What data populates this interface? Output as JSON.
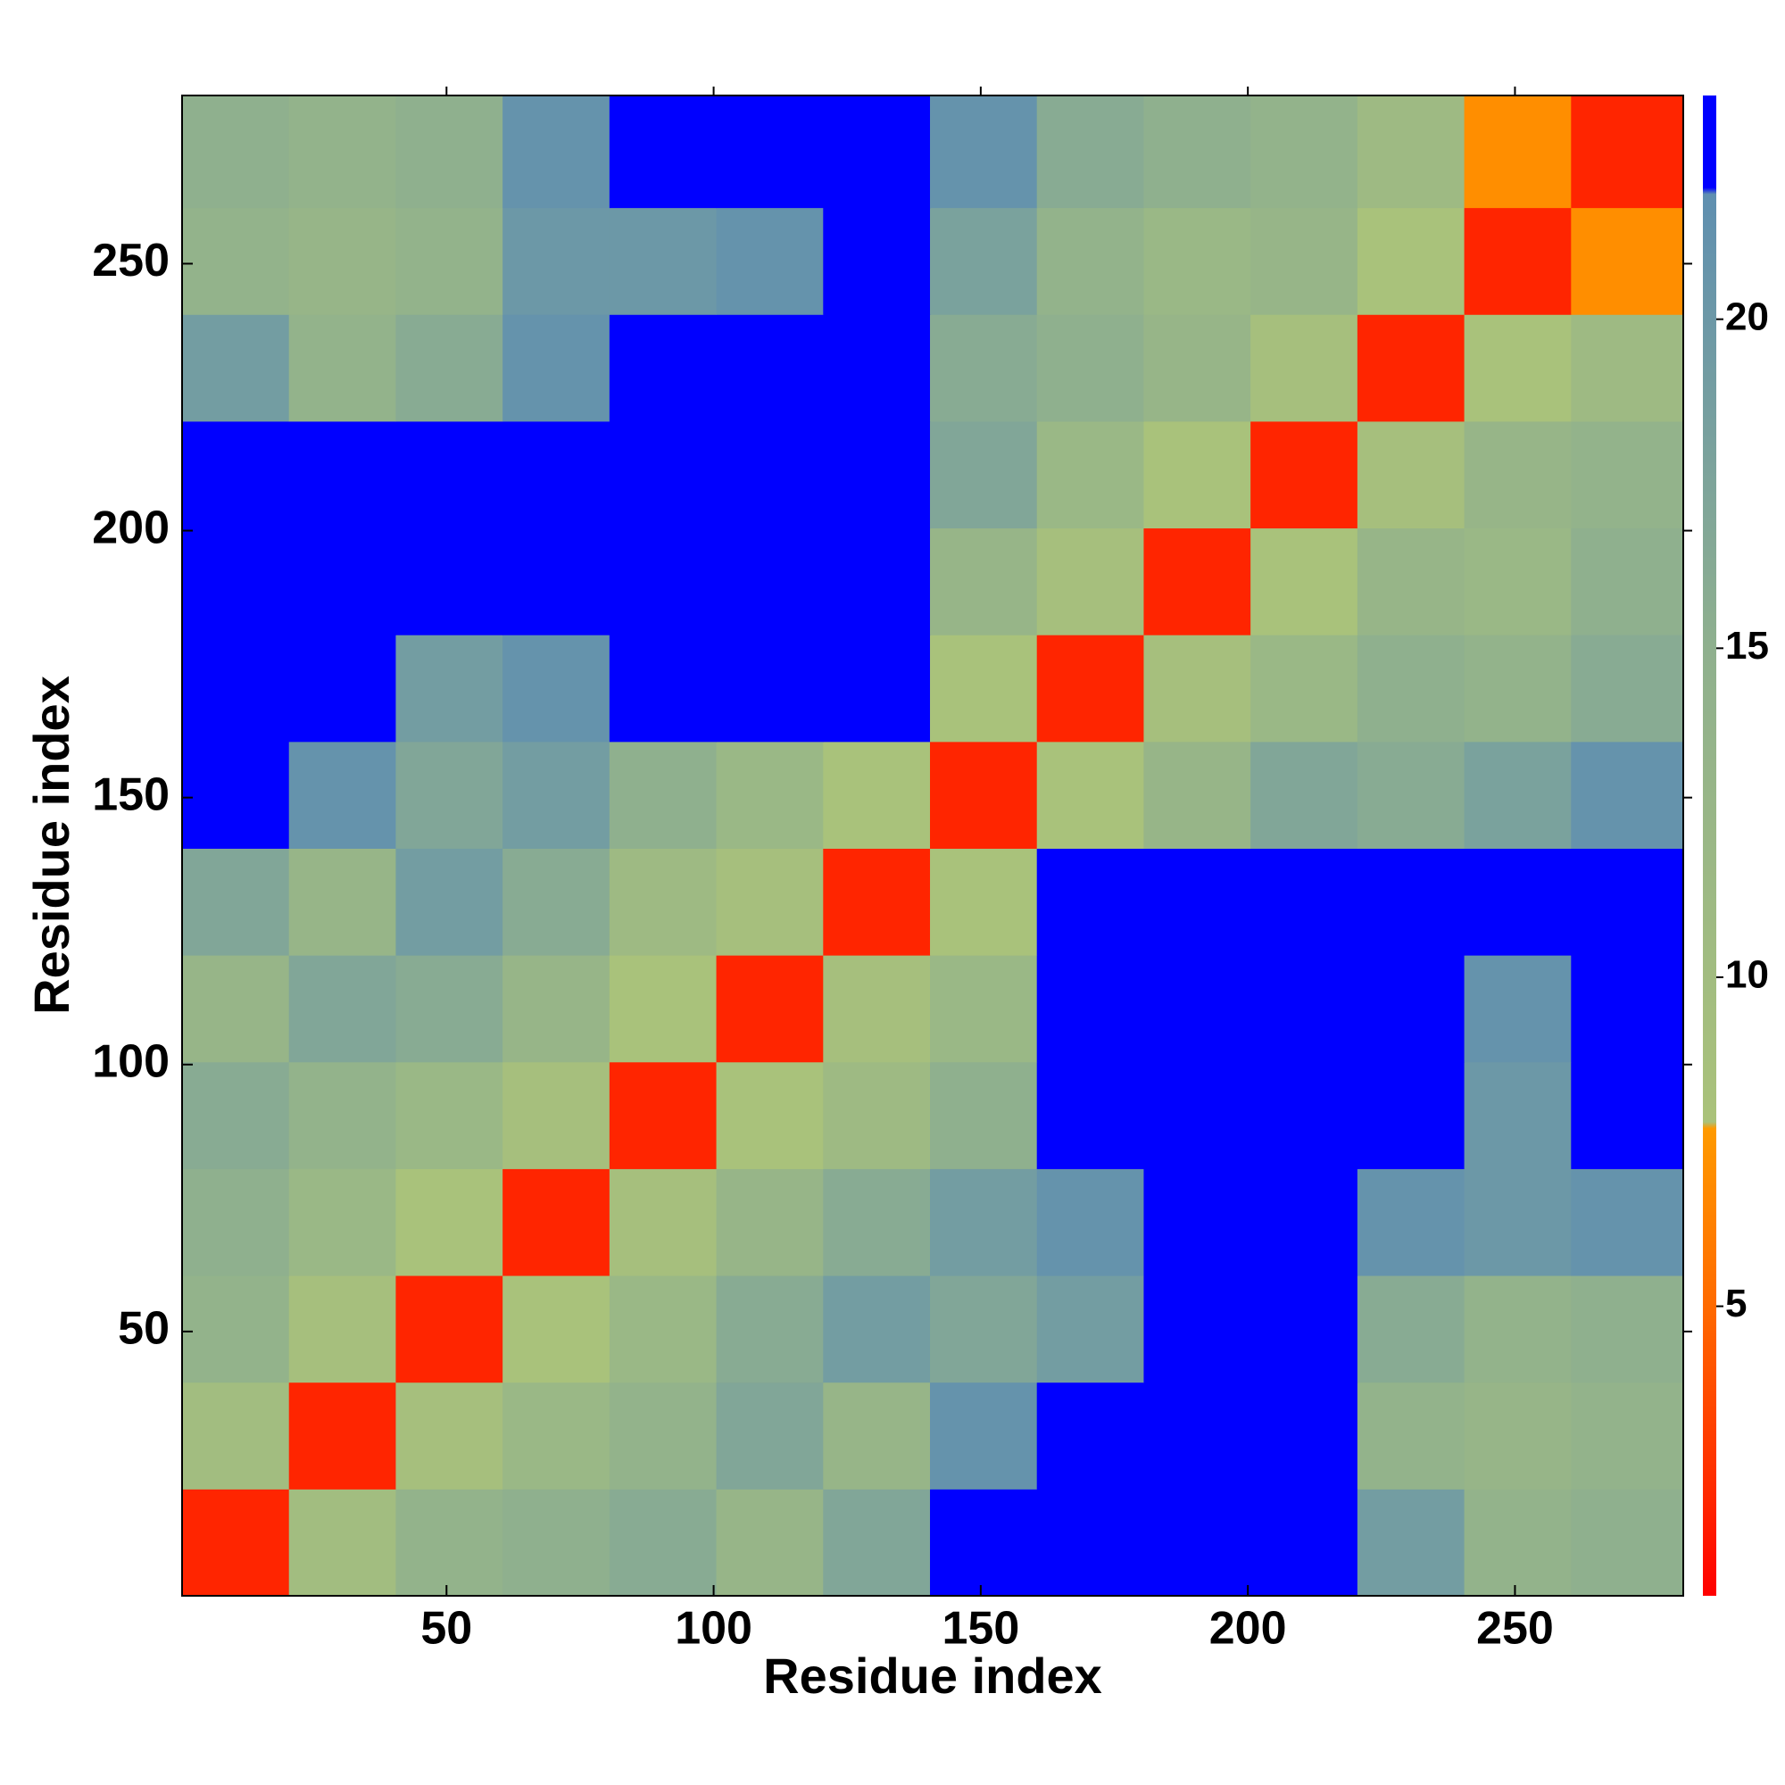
{
  "chart_data": {
    "type": "heatmap",
    "x_label": "Residue index",
    "y_label": "Residue index",
    "bins": [
      0.5,
      20.5,
      40.5,
      60.5,
      80.5,
      100.5,
      120.5,
      140.5,
      160.5,
      180.5,
      200.5,
      220.5,
      240.5,
      260.5,
      281.5
    ],
    "z": [
      [
        2,
        10,
        14,
        15,
        16,
        13,
        17,
        23,
        23,
        23,
        23,
        19,
        14,
        15
      ],
      [
        10,
        2,
        9,
        12,
        14,
        17,
        13,
        21,
        22,
        23,
        23,
        14,
        13,
        14
      ],
      [
        14,
        9,
        2,
        8,
        12,
        16,
        19,
        17,
        19,
        23,
        23,
        16,
        14,
        15
      ],
      [
        15,
        12,
        8,
        2,
        9,
        13,
        16,
        19,
        21,
        23,
        23,
        21,
        20,
        21
      ],
      [
        16,
        14,
        12,
        9,
        2,
        8,
        11,
        15,
        23,
        23,
        23,
        23,
        20,
        23
      ],
      [
        13,
        17,
        16,
        13,
        8,
        2,
        9,
        12,
        23,
        23,
        23,
        23,
        21,
        23
      ],
      [
        17,
        13,
        19,
        16,
        11,
        9,
        2,
        8,
        23,
        23,
        23,
        23,
        23,
        23
      ],
      [
        23,
        21,
        17,
        19,
        15,
        12,
        8,
        2,
        8,
        13,
        17,
        16,
        18,
        21
      ],
      [
        23,
        22,
        19,
        21,
        23,
        23,
        23,
        8,
        2,
        9,
        12,
        15,
        14,
        16
      ],
      [
        23,
        23,
        23,
        23,
        23,
        23,
        23,
        13,
        9,
        2,
        8,
        13,
        12,
        15
      ],
      [
        23,
        23,
        23,
        23,
        23,
        23,
        23,
        17,
        12,
        8,
        2,
        9,
        13,
        14
      ],
      [
        19,
        14,
        16,
        21,
        23,
        23,
        23,
        16,
        15,
        13,
        9,
        2,
        8,
        11
      ],
      [
        14,
        13,
        14,
        20,
        20,
        21,
        23,
        18,
        14,
        12,
        13,
        8,
        2,
        7
      ],
      [
        15,
        14,
        15,
        21,
        23,
        23,
        23,
        21,
        16,
        15,
        14,
        11,
        7,
        2
      ]
    ],
    "xlim": [
      0.5,
      281.5
    ],
    "ylim": [
      0.5,
      281.5
    ],
    "xticks": [
      50,
      100,
      150,
      200,
      250
    ],
    "yticks": [
      50,
      100,
      150,
      200,
      250
    ],
    "clim": [
      0.6,
      23.4
    ],
    "cticks": [
      5,
      10,
      15,
      20
    ],
    "color_stops": [
      {
        "value": 0.6,
        "color": "#ff0000"
      },
      {
        "value": 2.2,
        "color": "#ff2a00"
      },
      {
        "value": 5,
        "color": "#ff6a00"
      },
      {
        "value": 7.7,
        "color": "#ff9a00"
      },
      {
        "value": 7.8,
        "color": "#aac27a"
      },
      {
        "value": 15,
        "color": "#8fb08e"
      },
      {
        "value": 21.9,
        "color": "#5f8fb0"
      },
      {
        "value": 22,
        "color": "#0000ff"
      },
      {
        "value": 23.4,
        "color": "#0000ff"
      }
    ]
  }
}
